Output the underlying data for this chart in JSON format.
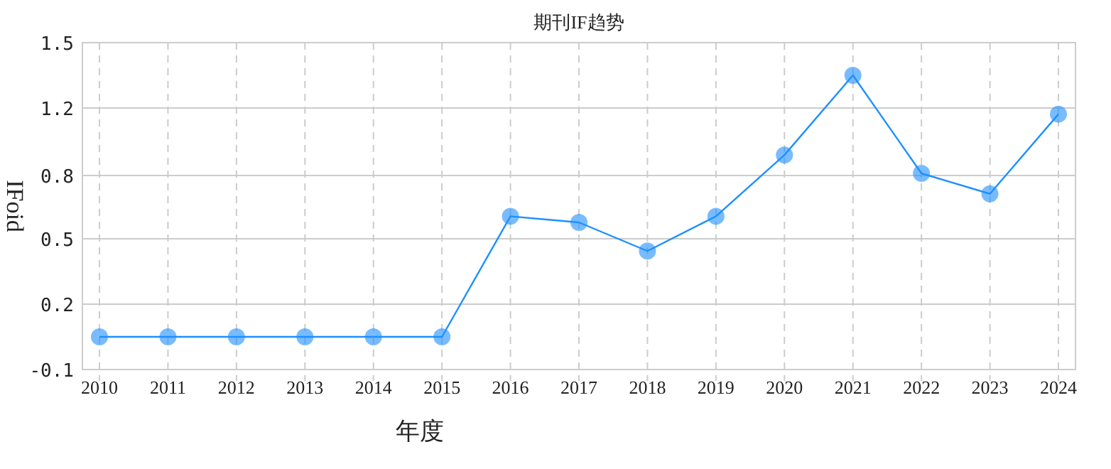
{
  "chart_data": {
    "type": "line",
    "title": "期刊IF趋势",
    "xlabel": "年度",
    "ylabel": "IFoid",
    "categories": [
      "2010",
      "2011",
      "2012",
      "2013",
      "2014",
      "2015",
      "2016",
      "2017",
      "2018",
      "2019",
      "2020",
      "2021",
      "2022",
      "2023",
      "2024"
    ],
    "series": [
      {
        "color": "#1e90ff",
        "values": [
          0.06,
          0.06,
          0.06,
          0.06,
          0.06,
          0.06,
          0.65,
          0.62,
          0.48,
          0.65,
          0.95,
          1.34,
          0.86,
          0.76,
          1.15
        ]
      }
    ],
    "ylim": [
      -0.1,
      1.5
    ],
    "yticks": [
      -0.1,
      {
        "value": 0.22,
        "label": "0.2"
      },
      {
        "value": 0.54,
        "label": "0.5"
      },
      {
        "value": 0.85,
        "label": "0.8"
      },
      {
        "value": 1.18,
        "label": "1.2"
      },
      1.5
    ],
    "grid": true,
    "marker": "circle",
    "line_style": "solid"
  }
}
